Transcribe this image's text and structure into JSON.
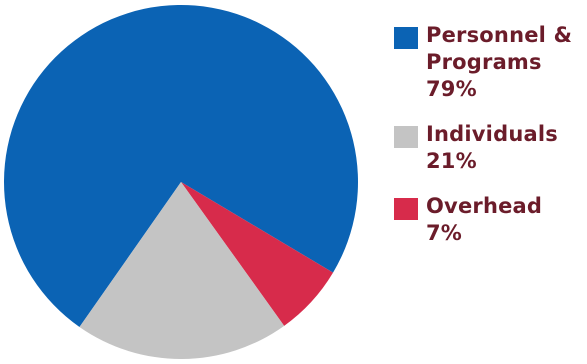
{
  "chart_data": {
    "type": "pie",
    "title": "",
    "slices": [
      {
        "label": "Personnel & Programs",
        "value": 79,
        "display": "Personnel & Programs 79%",
        "color": "#0b63b4"
      },
      {
        "label": "Individuals",
        "value": 21,
        "display": "Individuals 21%",
        "color": "#c4c4c4"
      },
      {
        "label": "Overhead",
        "value": 7,
        "display": "Overhead 7%",
        "color": "#d72b4b"
      }
    ],
    "legend_position": "right"
  },
  "legend": {
    "items": [
      {
        "line1": "Personnel &",
        "line2": "Programs 79%"
      },
      {
        "line1": "Individuals",
        "line2": "21%"
      },
      {
        "line1": "Overhead",
        "line2": "7%"
      }
    ]
  }
}
